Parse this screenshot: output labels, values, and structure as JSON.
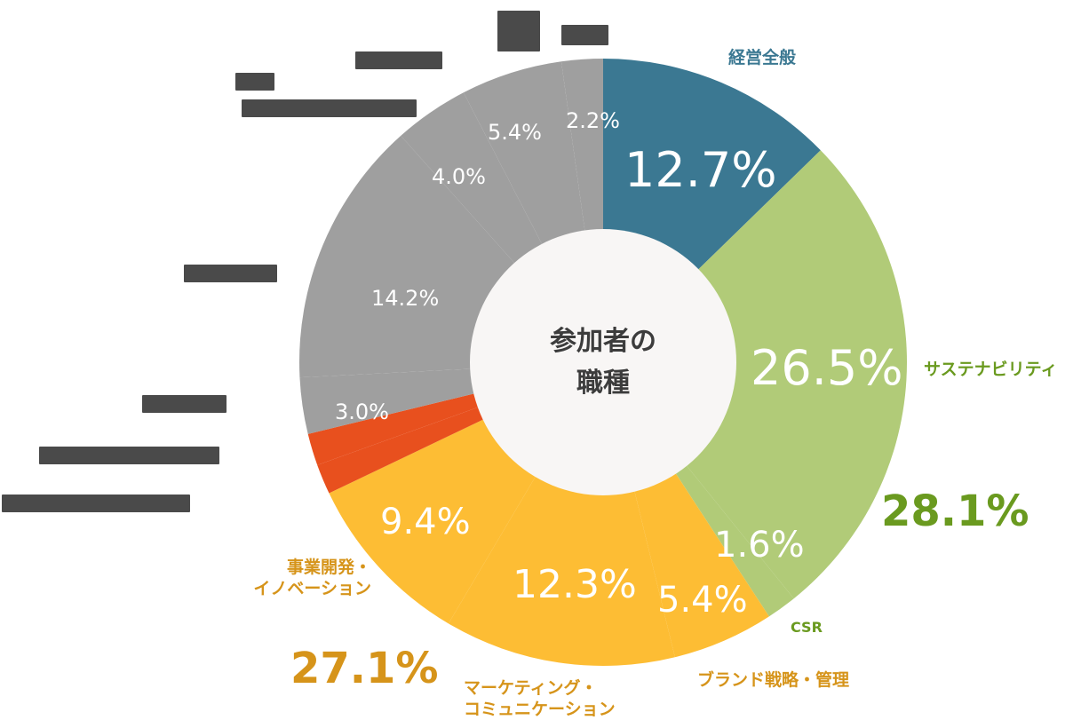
{
  "chart_data": {
    "type": "pie",
    "variant": "donut",
    "title": "参加者の職種",
    "center_label_lines": [
      "参加者の",
      "職種"
    ],
    "start_angle_deg": 0,
    "direction": "clockwise",
    "segments": [
      {
        "name": "経営全般",
        "value": 12.7,
        "color": "#3b7892",
        "label_color": "#3b7892"
      },
      {
        "name": "サステナビリティ",
        "value": 26.5,
        "color": "#b1cb78",
        "label_color": "#6a9a1f",
        "group": "28.1%"
      },
      {
        "name": "CSR",
        "value": 1.6,
        "color": "#b1cb78",
        "label_color": "#6a9a1f",
        "group": "28.1%"
      },
      {
        "name": "ブランド戦略・管理",
        "value": 5.4,
        "color": "#fdbd34",
        "label_color": "#d6941a",
        "group": "27.1%"
      },
      {
        "name": "マーケティング・コミュニケーション",
        "value": 12.3,
        "color": "#fdbd34",
        "label_color": "#d6941a",
        "group": "27.1%"
      },
      {
        "name": "事業開発・イノベーション",
        "value": 9.4,
        "color": "#fdbd34",
        "label_color": "#d6941a",
        "group": "27.1%"
      },
      {
        "name": "(obscured label) 1.x%",
        "value": 1.6,
        "color": "#e8501e",
        "label_color": "#4a4a4a"
      },
      {
        "name": "(obscured label) 1.x%",
        "value": 1.7,
        "color": "#e8501e",
        "label_color": "#4a4a4a"
      },
      {
        "name": "(obscured label)",
        "value": 3.0,
        "color": "#9f9f9f",
        "label_color": "#4a4a4a"
      },
      {
        "name": "(obscured label)",
        "value": 14.2,
        "color": "#9f9f9f",
        "label_color": "#4a4a4a"
      },
      {
        "name": "(obscured label)",
        "value": 4.0,
        "color": "#9f9f9f",
        "label_color": "#4a4a4a"
      },
      {
        "name": "(obscured label)",
        "value": 5.4,
        "color": "#9f9f9f",
        "label_color": "#4a4a4a"
      },
      {
        "name": "(obscured label)",
        "value": 2.2,
        "color": "#9f9f9f",
        "label_color": "#4a4a4a"
      }
    ],
    "group_totals": [
      {
        "label": "28.1%",
        "color": "#6a9a1f"
      },
      {
        "label": "27.1%",
        "color": "#d6941a"
      }
    ]
  },
  "center": {
    "line1": "参加者の",
    "line2": "職種"
  },
  "inner_pcts": {
    "p127": "12.7%",
    "p265": "26.5%",
    "p16": "1.6%",
    "p54b": "5.4%",
    "p123": "12.3%",
    "p94": "9.4%",
    "p30": "3.0%",
    "p142": "14.2%",
    "p40": "4.0%",
    "p54g": "5.4%",
    "p22": "2.2%"
  },
  "outer_labels": {
    "keiei": "経営全般",
    "sustain": "サステナビリティ",
    "csr": "CSR",
    "brand": "ブランド戦略・管理",
    "marketing1": "マーケティング・",
    "marketing2": "コミュニケーション",
    "jigyo1": "事業開発・",
    "jigyo2": "イノベーション",
    "total_green": "28.1%",
    "total_yellow": "27.1%",
    "masked_top": "Dunh",
    "masked_1": "████████",
    "masked_2a": "███-",
    "masked_2b": "████████████████",
    "masked_3": "████-████",
    "masked_4": "████ー ██",
    "masked_5": "██████-██████ 1.x%",
    "masked_6": "███████ー█ ·███ 1.x%"
  }
}
